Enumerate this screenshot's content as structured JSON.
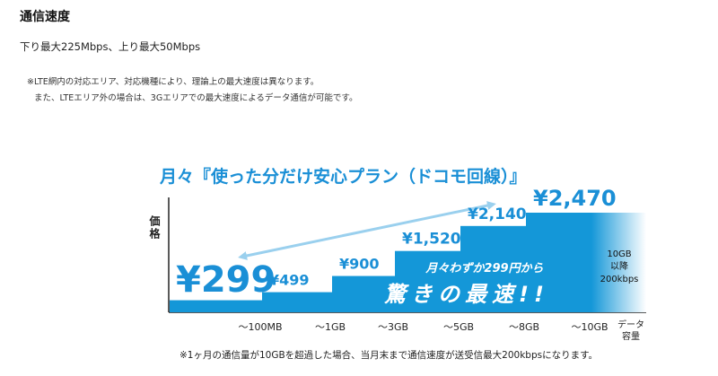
{
  "section_title": "通信速度",
  "speed_text": "下り最大225Mbps、上り最大50Mbps",
  "notes": [
    "※LTE網内の対応エリア、対応機種により、理論上の最大速度は異なります。",
    "また、LTEエリア外の場合は、3Gエリアでの最大速度によるデータ通信が可能です。"
  ],
  "footnote": "※1ヶ月の通信量が10GBを超過した場合、当月末まで通信速度が送受信最大200kbpsになります。",
  "colors": {
    "bar": "#1497d8",
    "accent": "#1a8fd6",
    "arrow": "#9ad0ee"
  },
  "chart_data": {
    "type": "bar",
    "title": "月々『使った分だけ安心プラン（ドコモ回線）』",
    "ylabel": "価格",
    "xlabel": "データ容量",
    "categories": [
      "〜100MB",
      "〜1GB",
      "〜3GB",
      "〜5GB",
      "〜8GB",
      "〜10GB"
    ],
    "values": [
      299,
      499,
      900,
      1520,
      2140,
      2470
    ],
    "value_labels": [
      "¥299",
      "¥499",
      "¥900",
      "¥1,520",
      "¥2,140",
      "¥2,470"
    ],
    "over_limit_label": [
      "10GB",
      "以降",
      "200kbps"
    ],
    "promo_line1": "月々わずか299円から",
    "promo_line2": "驚きの最速!!"
  }
}
